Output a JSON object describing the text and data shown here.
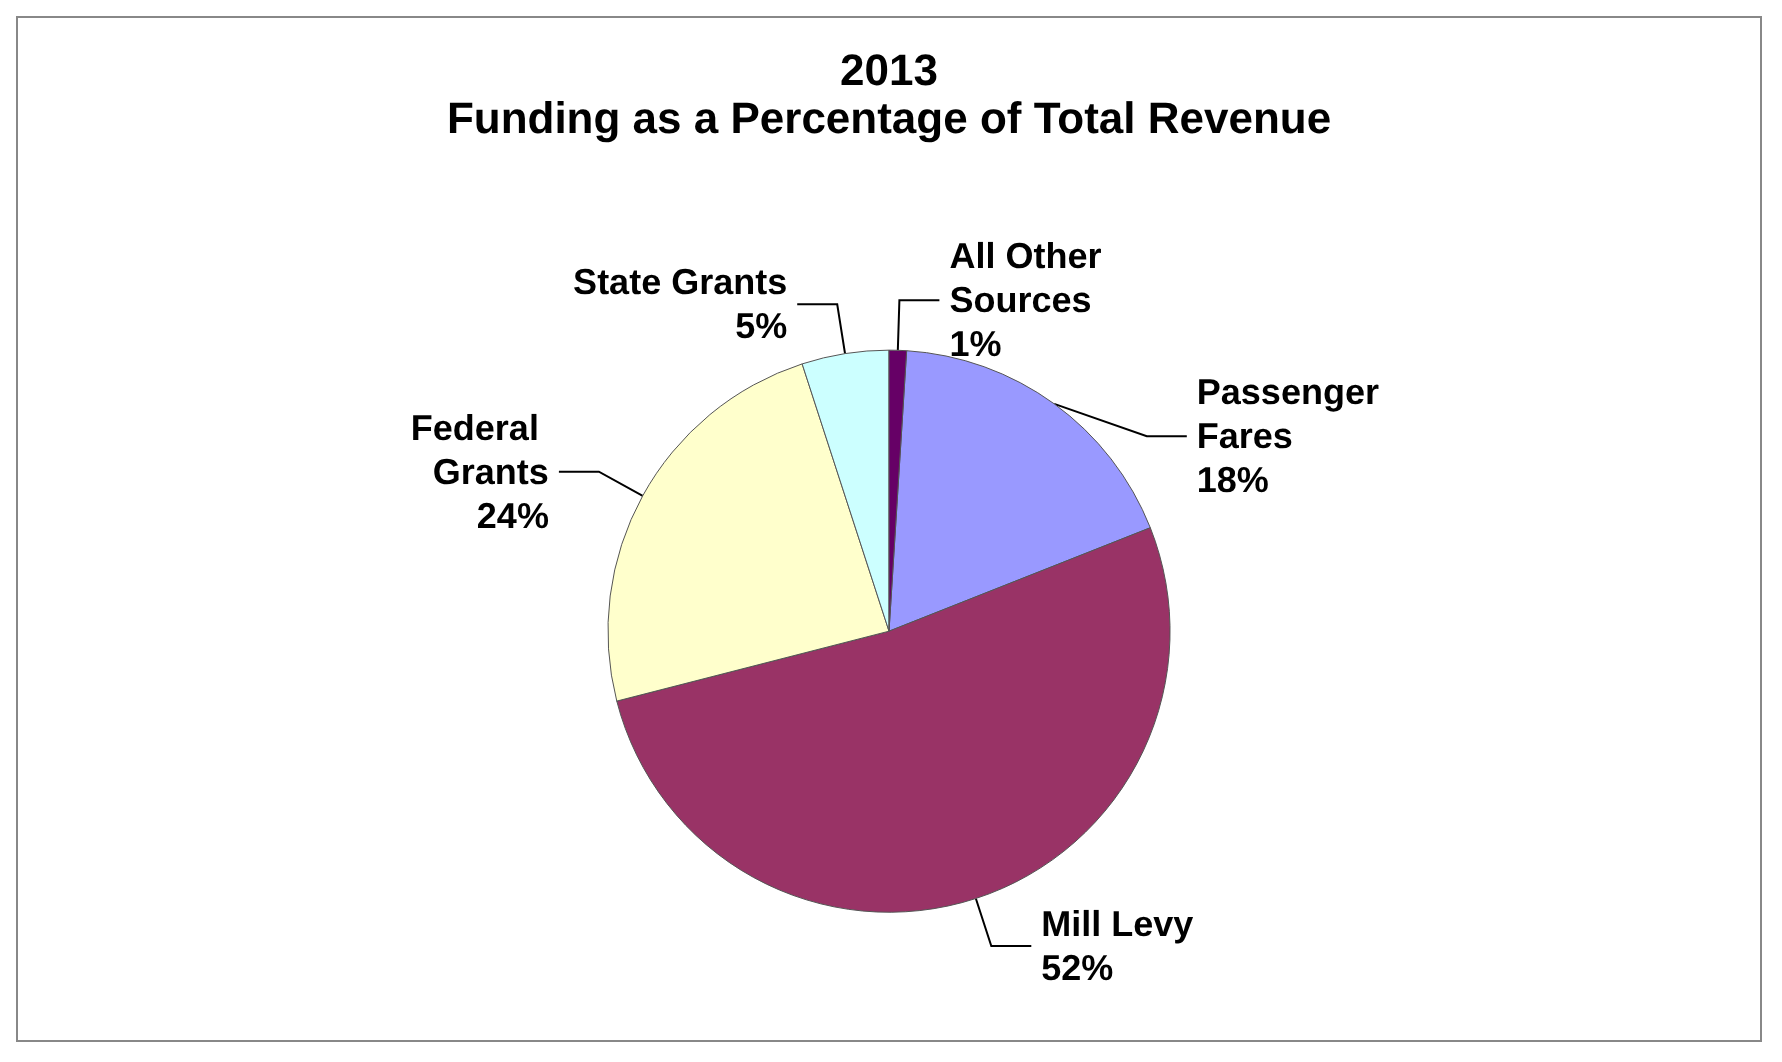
{
  "chart_data": {
    "type": "pie",
    "title": "2013",
    "subtitle": "Funding as a Percentage of Total Revenue",
    "categories": [
      "Passenger Fares",
      "Mill Levy",
      "Federal Grants",
      "State Grants",
      "All Other Sources"
    ],
    "values": [
      18,
      52,
      24,
      5,
      1
    ],
    "colors": [
      "#9999ff",
      "#993366",
      "#ffffcc",
      "#ccffff",
      "#660066"
    ],
    "value_labels": [
      "18%",
      "52%",
      "24%",
      "5%",
      "1%"
    ],
    "legend": false
  }
}
